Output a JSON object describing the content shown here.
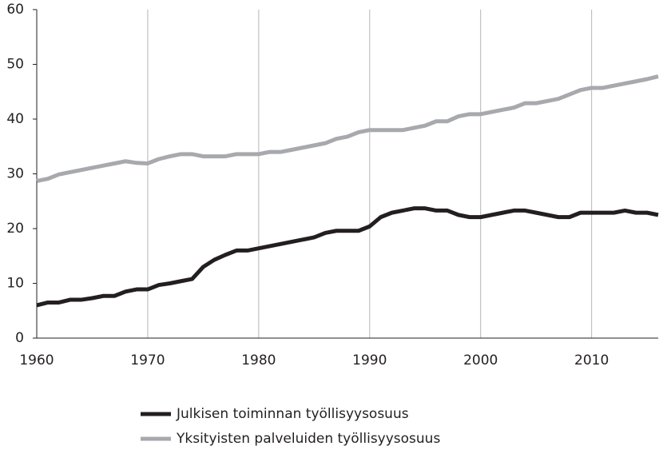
{
  "chart_data": {
    "type": "line",
    "x": [
      1960,
      1961,
      1962,
      1963,
      1964,
      1965,
      1966,
      1967,
      1968,
      1969,
      1970,
      1971,
      1972,
      1973,
      1974,
      1975,
      1976,
      1977,
      1978,
      1979,
      1980,
      1981,
      1982,
      1983,
      1984,
      1985,
      1986,
      1987,
      1988,
      1989,
      1990,
      1991,
      1992,
      1993,
      1994,
      1995,
      1996,
      1997,
      1998,
      1999,
      2000,
      2001,
      2002,
      2003,
      2004,
      2005,
      2006,
      2007,
      2008,
      2009,
      2010,
      2011,
      2012,
      2013,
      2014,
      2015,
      2016
    ],
    "series": [
      {
        "name": "Julkisen toiminnan työllisyysosuus",
        "color": "#231f20",
        "values": [
          6,
          6.5,
          6.5,
          7,
          7,
          7.3,
          7.7,
          7.7,
          8.5,
          8.9,
          8.9,
          9.7,
          10,
          10.4,
          10.8,
          13,
          14.3,
          15.2,
          16,
          16,
          16.4,
          16.8,
          17.2,
          17.6,
          18,
          18.4,
          19.2,
          19.6,
          19.6,
          19.6,
          20.4,
          22.1,
          22.9,
          23.3,
          23.7,
          23.7,
          23.3,
          23.3,
          22.5,
          22.1,
          22.1,
          22.5,
          22.9,
          23.3,
          23.3,
          22.9,
          22.5,
          22.1,
          22.1,
          22.9,
          22.9,
          22.9,
          22.9,
          23.3,
          22.9,
          22.9,
          22.5
        ]
      },
      {
        "name": "Yksityisten palveluiden työllisyysosuus",
        "color": "#a7a9ac",
        "values": [
          28.7,
          29.1,
          29.9,
          30.3,
          30.7,
          31.1,
          31.5,
          31.9,
          32.3,
          32,
          31.9,
          32.7,
          33.2,
          33.6,
          33.6,
          33.2,
          33.2,
          33.2,
          33.6,
          33.6,
          33.6,
          34,
          34,
          34.4,
          34.8,
          35.2,
          35.6,
          36.4,
          36.8,
          37.6,
          38,
          38,
          38,
          38,
          38.4,
          38.8,
          39.6,
          39.6,
          40.5,
          40.9,
          40.9,
          41.3,
          41.7,
          42.1,
          42.9,
          42.9,
          43.3,
          43.7,
          44.5,
          45.3,
          45.7,
          45.7,
          46.1,
          46.5,
          46.9,
          47.3,
          47.8
        ]
      }
    ],
    "xlim": [
      1960,
      2016
    ],
    "xticks": [
      1960,
      1970,
      1980,
      1990,
      2000,
      2010
    ],
    "ylim": [
      0,
      60
    ],
    "yticks": [
      0,
      10,
      20,
      30,
      40,
      50,
      60
    ],
    "grid": "x",
    "legend": "bottom"
  }
}
